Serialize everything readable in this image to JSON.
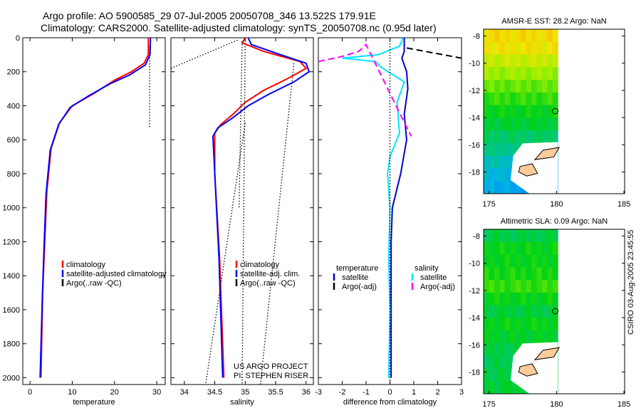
{
  "title": {
    "line1": "Argo profile: AO 5900585_29 07-Jul-2005 20050708_346 13.522S 179.91E",
    "line2": "Climatology: CARS2000. Satellite-adjusted climatology: synTS_20050708.nc (0.95d later)"
  },
  "credit": "CSIRO 03-Aug-2005 23:45:55",
  "chart_data": [
    {
      "type": "line",
      "name": "temperature",
      "xlabel": "temperature",
      "ylabel": "",
      "xlim": [
        -1.7,
        32
      ],
      "ylim": [
        2040,
        0
      ],
      "xticks": [
        0,
        10,
        20,
        30
      ],
      "yticks": [
        0,
        200,
        400,
        600,
        800,
        1000,
        1200,
        1400,
        1600,
        1800,
        2000
      ],
      "legend": [
        "climatology",
        "satellite-adjusted climatology",
        "Argo(..raw -QC)"
      ],
      "legend_placement": "middle-right",
      "series": [
        {
          "name": "climatology",
          "color": "#ff0000",
          "style": "solid",
          "points": [
            [
              28,
              0
            ],
            [
              28,
              100
            ],
            [
              27,
              150
            ],
            [
              24,
              200
            ],
            [
              20,
              250
            ],
            [
              15,
              330
            ],
            [
              10,
              400
            ],
            [
              7,
              500
            ],
            [
              5,
              650
            ],
            [
              4,
              900
            ],
            [
              3.5,
              1200
            ],
            [
              3,
              1500
            ],
            [
              2.6,
              2000
            ]
          ]
        },
        {
          "name": "satellite-adjusted climatology",
          "color": "#0000ff",
          "style": "solid",
          "points": [
            [
              28.5,
              0
            ],
            [
              28.4,
              100
            ],
            [
              27.3,
              160
            ],
            [
              23.5,
              220
            ],
            [
              19,
              270
            ],
            [
              14,
              340
            ],
            [
              9.5,
              410
            ],
            [
              6.8,
              510
            ],
            [
              4.8,
              660
            ],
            [
              3.8,
              920
            ],
            [
              3.3,
              1250
            ],
            [
              2.9,
              1550
            ],
            [
              2.4,
              2000
            ]
          ]
        },
        {
          "name": "Argo(..raw -QC)",
          "color": "#000000",
          "style": "dotted",
          "points": [
            [
              28.3,
              50
            ],
            [
              28.3,
              530
            ]
          ]
        }
      ]
    },
    {
      "type": "line",
      "name": "salinity",
      "xlabel": "salinity",
      "xlim": [
        33.78,
        36.12
      ],
      "ylim": [
        2040,
        0
      ],
      "xticks": [
        34,
        34.5,
        35,
        35.5,
        36
      ],
      "legend": [
        "climatology",
        "satellite-adj. clim.",
        "Argo(..raw -QC)"
      ],
      "legend_placement": "middle-right",
      "annotations": [
        "US ARGO PROJECT",
        "PI: STEPHEN RISER"
      ],
      "series": [
        {
          "name": "climatology",
          "color": "#ff0000",
          "style": "solid",
          "points": [
            [
              35.0,
              0
            ],
            [
              34.95,
              30
            ],
            [
              35.3,
              80
            ],
            [
              35.9,
              140
            ],
            [
              36.0,
              180
            ],
            [
              35.7,
              240
            ],
            [
              35.3,
              310
            ],
            [
              35.0,
              380
            ],
            [
              34.8,
              450
            ],
            [
              34.6,
              510
            ],
            [
              34.5,
              560
            ],
            [
              34.5,
              800
            ],
            [
              34.58,
              1300
            ],
            [
              34.65,
              2000
            ]
          ]
        },
        {
          "name": "satellite-adj. clim.",
          "color": "#0000ff",
          "style": "solid",
          "points": [
            [
              35.05,
              0
            ],
            [
              35.1,
              40
            ],
            [
              35.5,
              90
            ],
            [
              36.0,
              150
            ],
            [
              36.05,
              200
            ],
            [
              35.8,
              260
            ],
            [
              35.4,
              330
            ],
            [
              35.05,
              400
            ],
            [
              34.8,
              470
            ],
            [
              34.55,
              530
            ],
            [
              34.47,
              580
            ],
            [
              34.5,
              800
            ],
            [
              34.57,
              1300
            ],
            [
              34.63,
              2000
            ]
          ]
        },
        {
          "name": "Argo(..raw -QC)",
          "color": "#000000",
          "style": "dotted",
          "points": [
            [
              34.95,
              20
            ],
            [
              34.9,
              1000
            ]
          ]
        },
        {
          "name": "bound-1",
          "color": "#000000",
          "style": "dotted",
          "points": [
            [
              33.78,
              180
            ],
            [
              34.9,
              10
            ]
          ]
        },
        {
          "name": "bound-2",
          "color": "#000000",
          "style": "dotted",
          "points": [
            [
              35.8,
              150
            ],
            [
              35.25,
              2040
            ]
          ]
        },
        {
          "name": "bound-3",
          "color": "#000000",
          "style": "dotted",
          "points": [
            [
              35.0,
              500
            ],
            [
              34.35,
              2040
            ]
          ]
        },
        {
          "name": "bound-4",
          "color": "#000000",
          "style": "dotted",
          "points": [
            [
              35.0,
              0
            ],
            [
              34.95,
              2040
            ]
          ]
        }
      ]
    },
    {
      "type": "line",
      "name": "difference",
      "xlabel": "difference from climatology",
      "xlim": [
        -3,
        3
      ],
      "ylim": [
        2040,
        0
      ],
      "xticks": [
        -3,
        -2,
        -1,
        0,
        1,
        2,
        3
      ],
      "legend_temperature": {
        "title": "temperature",
        "items": [
          "satellite",
          "Argo(-adj)"
        ]
      },
      "legend_salinity": {
        "title": "salinity",
        "items": [
          "satellite",
          "Argo(-adj)"
        ]
      },
      "series": [
        {
          "name": "temperature satellite",
          "color": "#0000cc",
          "style": "solid",
          "points": [
            [
              0.6,
              0
            ],
            [
              0.6,
              80
            ],
            [
              0.5,
              120
            ],
            [
              0.7,
              200
            ],
            [
              0.75,
              300
            ],
            [
              0.6,
              450
            ],
            [
              0.7,
              600
            ],
            [
              0.45,
              800
            ],
            [
              0.1,
              1000
            ],
            [
              0.05,
              1200
            ],
            [
              0.05,
              2000
            ]
          ]
        },
        {
          "name": "temperature Argo(-adj)",
          "color": "#000000",
          "style": "dashed",
          "points": [
            [
              0.7,
              60
            ],
            [
              3,
              120
            ]
          ]
        },
        {
          "name": "salinity satellite",
          "color": "#00e5ff",
          "style": "solid",
          "points": [
            [
              0.55,
              0
            ],
            [
              0.4,
              50
            ],
            [
              -0.5,
              100
            ],
            [
              -2,
              120
            ],
            [
              -0.6,
              140
            ],
            [
              -0.4,
              170
            ],
            [
              0.6,
              260
            ],
            [
              0.3,
              380
            ],
            [
              0.4,
              560
            ],
            [
              0,
              700
            ],
            [
              -0.1,
              800
            ],
            [
              0,
              1000
            ],
            [
              -0.05,
              1300
            ],
            [
              0,
              1600
            ],
            [
              -0.05,
              2000
            ]
          ]
        },
        {
          "name": "salinity Argo(-adj)",
          "color": "#ff00ff",
          "style": "dashed",
          "points": [
            [
              -3,
              140
            ],
            [
              -2,
              110
            ],
            [
              -1.3,
              80
            ],
            [
              -1,
              40
            ],
            [
              0.5,
              470
            ],
            [
              0.9,
              580
            ]
          ]
        },
        {
          "name": "zero",
          "color": "#000000",
          "style": "dotted",
          "points": [
            [
              0,
              0
            ],
            [
              0,
              2040
            ]
          ]
        }
      ]
    },
    {
      "type": "heatmap",
      "name": "sst-map",
      "title": "AMSR-E SST: 28.2 Argo: NaN",
      "xlim": [
        174.6,
        185.05
      ],
      "ylim": [
        -19.6,
        -7.5
      ],
      "xticks": [
        175,
        180,
        185
      ],
      "yticks": [
        -8,
        -10,
        -12,
        -14,
        -16,
        -18
      ],
      "lat_band_values": [
        0.8,
        0.78,
        0.72,
        0.66,
        0.6,
        0.55,
        0.5,
        0.47,
        0.42,
        0.38,
        0.33,
        0.28,
        0.25
      ]
    },
    {
      "type": "heatmap",
      "name": "sla-map",
      "title": "Altimetric SLA: 0.09 Argo: NaN",
      "xlim": [
        174.6,
        185.05
      ],
      "ylim": [
        -19.6,
        -7.5
      ],
      "xticks": [
        175,
        180,
        185
      ],
      "yticks": [
        -8,
        -10,
        -12,
        -14,
        -16,
        -18
      ],
      "lat_band_values": [
        0.45,
        0.5,
        0.5,
        0.52,
        0.55,
        0.5,
        0.46,
        0.5,
        0.48,
        0.45,
        0.44,
        0.45,
        0.47
      ]
    }
  ],
  "colors": {
    "land": "#ffcc99"
  }
}
